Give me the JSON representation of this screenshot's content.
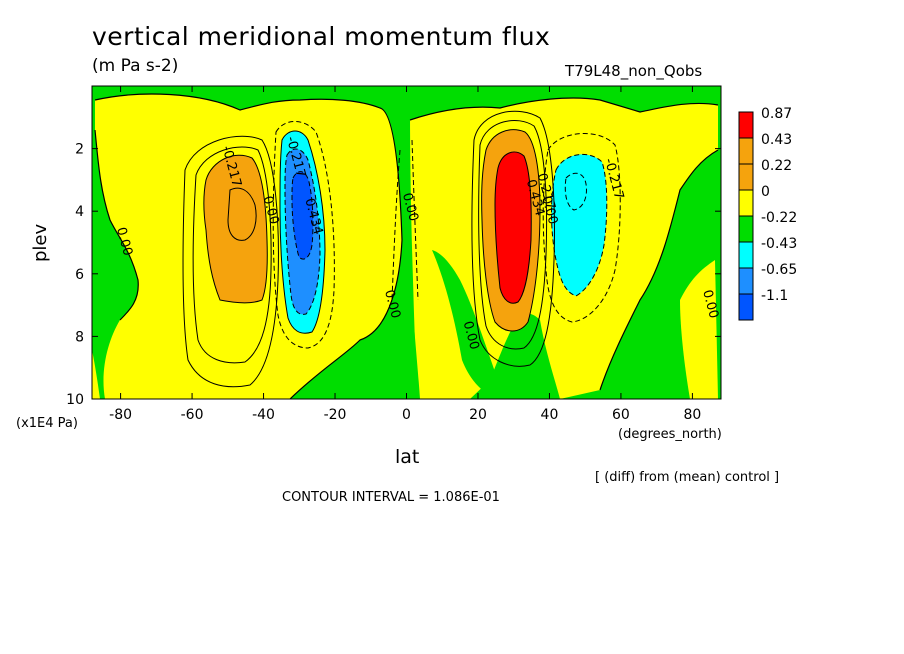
{
  "title": "vertical meridional momentum flux",
  "units": "(m Pa s-2)",
  "run_label": "T79L48_non_Qobs",
  "y_scale_label": "(x1E4 Pa)",
  "x_units_label": "(degrees_north)",
  "xlabel": "lat",
  "ylabel": "plev",
  "diff_note": "[ (diff) from (mean) control ]",
  "contour_interval": "CONTOUR INTERVAL = 1.086E-01",
  "colors": {
    "red": "#ff0000",
    "orange": "#f5a30d",
    "yellow": "#ffff00",
    "green": "#00dd00",
    "cyan": "#00ffff",
    "lightblue": "#1e8fff",
    "blue": "#0055ff"
  },
  "chart_data": {
    "type": "heatmap",
    "x_axis": {
      "range": [
        -88,
        88
      ],
      "ticks": [
        -80,
        -60,
        -40,
        -20,
        0,
        20,
        40,
        60,
        80
      ]
    },
    "y_axis": {
      "range": [
        0,
        10
      ],
      "inverted": true,
      "ticks": [
        2,
        4,
        6,
        8,
        10
      ]
    },
    "legend": {
      "position": "right",
      "levels": [
        "0.87",
        "0.43",
        "0.22",
        "0",
        "-0.22",
        "-0.43",
        "-0.65",
        "-1.1"
      ],
      "colors": [
        "#ff0000",
        "#f5a30d",
        "#f5a30d",
        "#ffff00",
        "#00dd00",
        "#00ffff",
        "#1e8fff",
        "#0055ff"
      ]
    },
    "contour_labels": [
      {
        "text": "-0.217",
        "lat": -50,
        "plev": 2.6
      },
      {
        "text": "-0.217",
        "lat": -32,
        "plev": 2.3
      },
      {
        "text": "0.434",
        "lat": -27,
        "plev": 4.2
      },
      {
        "text": "0.00",
        "lat": -39,
        "plev": 4.0
      },
      {
        "text": "0.00",
        "lat": -80,
        "plev": 5.0
      },
      {
        "text": "0.00",
        "lat": 0,
        "plev": 3.9
      },
      {
        "text": "0.00",
        "lat": -5,
        "plev": 7.0
      },
      {
        "text": "0.00",
        "lat": 17,
        "plev": 8.0
      },
      {
        "text": "0.434",
        "lat": 35,
        "plev": 3.6
      },
      {
        "text": "0.217",
        "lat": 38,
        "plev": 3.4
      },
      {
        "text": "0.00",
        "lat": 39,
        "plev": 4.0
      },
      {
        "text": "-0.217",
        "lat": 57,
        "plev": 3.0
      },
      {
        "text": "0.00",
        "lat": 84,
        "plev": 7.0
      }
    ],
    "features": [
      {
        "value": 0.22,
        "color": "orange",
        "lat_range": [
          -58,
          -42
        ],
        "plev_range": [
          2.3,
          7.0
        ]
      },
      {
        "value": -0.43,
        "color": "cyan",
        "lat_range": [
          -38,
          -24
        ],
        "plev_range": [
          1.5,
          7.9
        ]
      },
      {
        "value": -0.65,
        "color": "lightblue",
        "lat_range": [
          -36,
          -26
        ],
        "plev_range": [
          2.0,
          7.0
        ]
      },
      {
        "value": -1.1,
        "color": "blue",
        "lat_range": [
          -34,
          -28
        ],
        "plev_range": [
          2.7,
          5.5
        ]
      },
      {
        "value": 0.43,
        "color": "orange",
        "lat_range": [
          21,
          40
        ],
        "plev_range": [
          1.4,
          7.8
        ]
      },
      {
        "value": 0.87,
        "color": "red",
        "lat_range": [
          27,
          37
        ],
        "plev_range": [
          2.0,
          7.0
        ]
      },
      {
        "value": -0.43,
        "color": "cyan",
        "lat_range": [
          44,
          60
        ],
        "plev_range": [
          2.5,
          6.6
        ]
      }
    ]
  }
}
